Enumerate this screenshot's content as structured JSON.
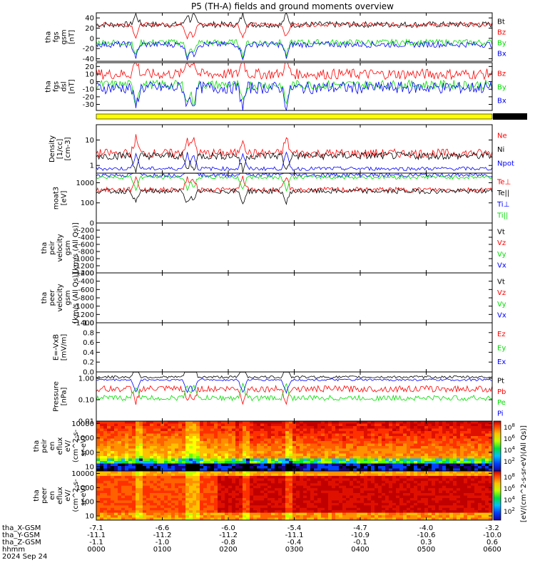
{
  "title": "P5 (TH-A) fields and ground moments overview",
  "colors": {
    "black": "#000000",
    "red": "#ff0000",
    "green": "#00dd00",
    "blue": "#0000ff",
    "yellow": "#ffff00"
  },
  "chart_data": [
    {
      "type": "line",
      "panel": "fgs_gsm",
      "ylabel": [
        "tha",
        "fgs",
        "gsm",
        "[nT]"
      ],
      "ylim": [
        -45,
        50
      ],
      "ticks": [
        40,
        20,
        0,
        -20,
        -40
      ],
      "series": [
        {
          "name": "Bt",
          "color": "#000000",
          "base": 27,
          "amp": 6
        },
        {
          "name": "Bz",
          "color": "#ff0000",
          "base": 27,
          "amp": 4
        },
        {
          "name": "By",
          "color": "#00dd00",
          "base": -8,
          "amp": 6
        },
        {
          "name": "Bx",
          "color": "#0000ff",
          "base": -12,
          "amp": 6
        }
      ]
    },
    {
      "type": "line",
      "panel": "fgs_dsl",
      "ylabel": [
        "tha",
        "fgs",
        "dsl",
        "[nT]"
      ],
      "ylim": [
        -38,
        25
      ],
      "ticks": [
        20,
        10,
        0,
        -10,
        -20,
        -30
      ],
      "series": [
        {
          "name": "Bz",
          "color": "#ff0000",
          "base": 10,
          "amp": 7
        },
        {
          "name": "By",
          "color": "#00dd00",
          "base": -4,
          "amp": 6
        },
        {
          "name": "Bx",
          "color": "#0000ff",
          "base": -8,
          "amp": 8
        }
      ]
    },
    {
      "type": "line",
      "panel": "density",
      "ylabel": [
        "Density",
        "[1/cc]",
        "[cm-3]"
      ],
      "scale": "log",
      "ylim": [
        0.5,
        40
      ],
      "ticks": [
        "10",
        "1"
      ],
      "series": [
        {
          "name": "Ne",
          "color": "#ff0000",
          "base": 3.0,
          "amp": 0.35
        },
        {
          "name": "Ni",
          "color": "#000000",
          "base": 2.4,
          "amp": 0.3
        },
        {
          "name": "Npot",
          "color": "#0000ff",
          "base": 0.75,
          "amp": 0.15
        }
      ]
    },
    {
      "type": "line",
      "panel": "temperature",
      "ylabel": [
        "moat3",
        "[eV]"
      ],
      "scale": "log",
      "ylim": [
        10,
        3000
      ],
      "ticks": [
        "1000",
        "100"
      ],
      "series": [
        {
          "name": "Te⊥",
          "color": "#ff0000",
          "base": 450,
          "amp": 0.25
        },
        {
          "name": "Te||",
          "color": "#000000",
          "base": 380,
          "amp": 0.25
        },
        {
          "name": "Ti⊥",
          "color": "#0000ff",
          "base": 2400,
          "amp": 0.2
        },
        {
          "name": "Ti||",
          "color": "#00dd00",
          "base": 1900,
          "amp": 0.2
        }
      ]
    },
    {
      "type": "line",
      "panel": "peir_velocity",
      "ylabel": [
        "tha",
        "peir",
        "velocity",
        "gsm",
        "[km/s (All Qs)]"
      ],
      "ylim": [
        -1400,
        0
      ],
      "ticks": [
        "0",
        "-200",
        "-400",
        "-600",
        "-800",
        "-1000",
        "-1200",
        "-1400"
      ],
      "series": [
        {
          "name": "Vt",
          "color": "#000000"
        },
        {
          "name": "Vz",
          "color": "#ff0000"
        },
        {
          "name": "Vy",
          "color": "#00dd00"
        },
        {
          "name": "Vx",
          "color": "#0000ff"
        }
      ]
    },
    {
      "type": "line",
      "panel": "peer_velocity",
      "ylabel": [
        "tha",
        "peer",
        "velocity",
        "gsm",
        "[km/s (All Qs)]"
      ],
      "ylim": [
        -1400,
        -200
      ],
      "ticks": [
        "-200",
        "-400",
        "-600",
        "-800",
        "-1000",
        "-1200",
        "-1400"
      ],
      "series": [
        {
          "name": "Vt",
          "color": "#000000"
        },
        {
          "name": "Vz",
          "color": "#ff0000"
        },
        {
          "name": "Vy",
          "color": "#00dd00"
        },
        {
          "name": "Vx",
          "color": "#0000ff"
        }
      ]
    },
    {
      "type": "line",
      "panel": "efield",
      "ylabel": [
        "E=-VxB",
        "[mV/m]"
      ],
      "ylim": [
        0,
        1
      ],
      "ticks": [
        "1.0",
        "0.8",
        "0.6",
        "0.4",
        "0.2",
        "0.0"
      ],
      "series": [
        {
          "name": "Ez",
          "color": "#ff0000"
        },
        {
          "name": "Ey",
          "color": "#00dd00"
        },
        {
          "name": "Ex",
          "color": "#0000ff"
        }
      ]
    },
    {
      "type": "line",
      "panel": "pressure",
      "ylabel": [
        "Pressure",
        "[nPa]"
      ],
      "scale": "log",
      "ylim": [
        0.01,
        2
      ],
      "ticks": [
        "1.00",
        "0.10",
        "0.01"
      ],
      "series": [
        {
          "name": "Pt",
          "color": "#000000",
          "base": 1.15,
          "amp": 0.12
        },
        {
          "name": "Pb",
          "color": "#ff0000",
          "base": 0.32,
          "amp": 0.3
        },
        {
          "name": "Pe",
          "color": "#00dd00",
          "base": 0.12,
          "amp": 0.25
        },
        {
          "name": "Pi",
          "color": "#0000ff",
          "base": 0.85,
          "amp": 0.1
        }
      ]
    },
    {
      "type": "heatmap",
      "panel": "peir_eflux",
      "ylabel": [
        "tha",
        "peir",
        "en",
        "eflux",
        "eV/",
        "(cm^2-s-",
        "sr-eV)"
      ],
      "scale": "log",
      "ylim": [
        5,
        15000
      ],
      "ticks": [
        "10000",
        "1000",
        "100",
        "10"
      ]
    },
    {
      "type": "heatmap",
      "panel": "peer_eflux",
      "ylabel": [
        "tha",
        "peer",
        "en",
        "eflux",
        "eV/",
        "(cm^2-s-",
        "sr-eV)"
      ],
      "scale": "log",
      "ylim": [
        5,
        15000
      ],
      "ticks": [
        "10000",
        "1000",
        "100",
        "10"
      ]
    }
  ],
  "colorbar": {
    "label": "[eV/(cm^2-s-sr-eV)(All Qs)]",
    "ticks_top": [
      "10^8",
      "10^6",
      "10^4",
      "10^2"
    ],
    "ticks_bottom": [
      "10^8",
      "10^6",
      "10^4",
      "10^2"
    ]
  },
  "xaxis": {
    "rows": [
      {
        "label": "tha_X-GSM",
        "values": [
          "-7.1",
          "-6.6",
          "-6.0",
          "-5.4",
          "-4.7",
          "-4.0",
          "-3.2"
        ]
      },
      {
        "label": "tha_Y-GSM",
        "values": [
          "-11.1",
          "-11.2",
          "-11.2",
          "-11.1",
          "-10.9",
          "-10.6",
          "-10.0"
        ]
      },
      {
        "label": "tha_Z-GSM",
        "values": [
          "-1.1",
          "-1.0",
          "-0.8",
          "-0.4",
          "-0.1",
          "0.3",
          "0.6"
        ]
      },
      {
        "label": "hhmm",
        "values": [
          "0000",
          "0100",
          "0200",
          "0300",
          "0400",
          "0500",
          "0600"
        ]
      }
    ],
    "date": "2024 Sep 24"
  }
}
